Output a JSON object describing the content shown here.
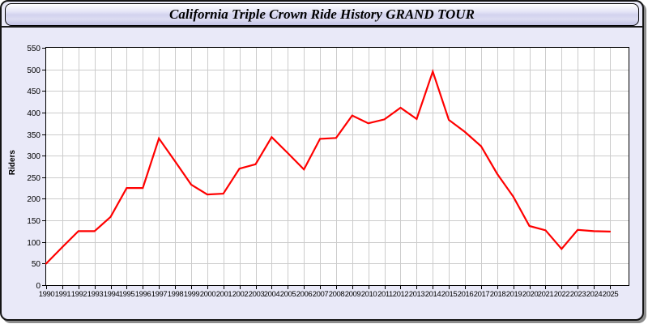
{
  "header": {
    "title": "California Triple Crown Ride History GRAND TOUR"
  },
  "chart_data": {
    "type": "line",
    "title": "California Triple Crown Ride History GRAND TOUR",
    "xlabel": "",
    "ylabel": "Riders",
    "x": [
      1990,
      1991,
      1992,
      1993,
      1994,
      1995,
      1996,
      1997,
      1998,
      1999,
      2000,
      2001,
      2002,
      2003,
      2004,
      2005,
      2006,
      2007,
      2008,
      2009,
      2010,
      2011,
      2012,
      2013,
      2014,
      2015,
      2016,
      2017,
      2018,
      2019,
      2020,
      2021,
      2022,
      2023,
      2024,
      2025
    ],
    "series": [
      {
        "name": "Riders",
        "color": "#ff0000",
        "values": [
          50,
          88,
          125,
          125,
          158,
          225,
          225,
          340,
          287,
          233,
          210,
          212,
          270,
          280,
          343,
          306,
          268,
          339,
          341,
          393,
          375,
          384,
          411,
          385,
          495,
          383,
          355,
          322,
          258,
          205,
          137,
          127,
          84,
          128,
          125,
          124
        ]
      }
    ],
    "ylim": [
      0,
      550
    ],
    "ytick_step": 50,
    "grid": true,
    "legend": "none"
  },
  "colors": {
    "line": "#ff0000",
    "grid": "#cccccc",
    "plot_bg": "#ffffff",
    "page_bg": "#e9e9f8",
    "axis": "#000000",
    "shadow": "#8d8d8d"
  }
}
